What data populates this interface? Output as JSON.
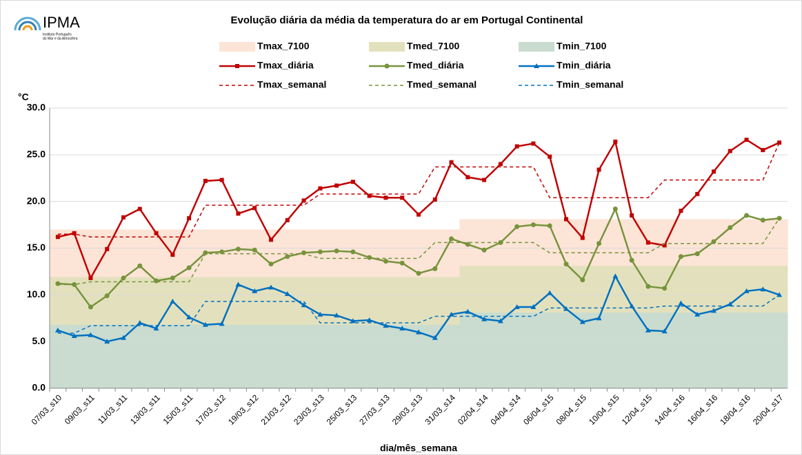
{
  "logo": {
    "name": "IPMA",
    "subtitle": [
      "Instituto Português",
      "do Mar e da Atmosfera"
    ]
  },
  "chart_data": {
    "type": "line",
    "title": "Evolução diária da média da temperatura do ar em Portugal Continental",
    "y_unit": "°C",
    "x_label": "dia/mês_semana",
    "categories": [
      "07/03_s10",
      null,
      "09/03_s11",
      null,
      "11/03_s11",
      null,
      "13/03_s11",
      null,
      "15/03_s11",
      null,
      "17/03_s12",
      null,
      "19/03_s12",
      null,
      "21/03_s12",
      null,
      "23/03_s13",
      null,
      "25/03_s13",
      null,
      "27/03_s13",
      null,
      "29/03_s13",
      null,
      "31/03_s14",
      null,
      "02/04_s14",
      null,
      "04/04_s14",
      null,
      "06/04_s15",
      null,
      "08/04_s15",
      null,
      "10/04_s15",
      null,
      "12/04_s15",
      null,
      "14/04_s16",
      null,
      "16/04_s16",
      null,
      "18/04_s16",
      null,
      "20/04_s17"
    ],
    "ylim": [
      0,
      30
    ],
    "yticks": [
      {
        "value": 0,
        "label": "0.0"
      },
      {
        "value": 5,
        "label": "5.0"
      },
      {
        "value": 10,
        "label": "10.0"
      },
      {
        "value": 15,
        "label": "15.0"
      },
      {
        "value": 20,
        "label": "20.0"
      },
      {
        "value": 25,
        "label": "25.0"
      },
      {
        "value": 30,
        "label": "30.0"
      }
    ],
    "grid": true,
    "series": [
      {
        "name": "Tmax_7100",
        "style": "area",
        "color": "#fce4d6",
        "values": [
          17.0,
          17.0,
          17.0,
          17.0,
          17.0,
          17.0,
          17.0,
          17.0,
          17.0,
          17.0,
          17.0,
          17.0,
          17.0,
          17.0,
          17.0,
          17.0,
          17.0,
          17.0,
          17.0,
          17.0,
          17.0,
          17.0,
          17.0,
          17.0,
          17.0,
          18.1,
          18.1,
          18.1,
          18.1,
          18.1,
          18.1,
          18.1,
          18.1,
          18.1,
          18.1,
          18.1,
          18.1,
          18.1,
          18.1,
          18.1,
          18.1,
          18.1,
          18.1,
          18.1,
          18.1
        ]
      },
      {
        "name": "Tmed_7100",
        "style": "area",
        "color": "#e3e1bd",
        "values": [
          11.9,
          11.9,
          11.9,
          11.9,
          11.9,
          11.9,
          11.9,
          11.9,
          11.9,
          11.9,
          11.9,
          11.9,
          11.9,
          11.9,
          11.9,
          11.9,
          11.9,
          11.9,
          11.9,
          11.9,
          11.9,
          11.9,
          11.9,
          11.9,
          11.9,
          13.1,
          13.1,
          13.1,
          13.1,
          13.1,
          13.1,
          13.1,
          13.1,
          13.1,
          13.1,
          13.1,
          13.1,
          13.1,
          13.1,
          13.1,
          13.1,
          13.1,
          13.1,
          13.1,
          13.1
        ]
      },
      {
        "name": "Tmin_7100",
        "style": "area",
        "color": "#c9dccf",
        "values": [
          6.8,
          6.8,
          6.8,
          6.8,
          6.8,
          6.8,
          6.8,
          6.8,
          6.8,
          6.8,
          6.8,
          6.8,
          6.8,
          6.8,
          6.8,
          6.8,
          6.8,
          6.8,
          6.8,
          6.8,
          6.8,
          6.8,
          6.8,
          6.8,
          6.8,
          8.1,
          8.1,
          8.1,
          8.1,
          8.1,
          8.1,
          8.1,
          8.1,
          8.1,
          8.1,
          8.1,
          8.1,
          8.1,
          8.1,
          8.1,
          8.1,
          8.1,
          8.1,
          8.1,
          8.1
        ]
      },
      {
        "name": "Tmax_diária",
        "style": "line",
        "marker": "square",
        "color": "#c00000",
        "values": [
          16.2,
          16.6,
          11.8,
          14.9,
          18.3,
          19.2,
          16.6,
          14.3,
          18.2,
          22.2,
          22.3,
          18.7,
          19.3,
          15.9,
          18.0,
          20.1,
          21.4,
          21.7,
          22.1,
          20.6,
          20.4,
          20.4,
          18.6,
          20.2,
          24.2,
          22.6,
          22.3,
          24.0,
          25.9,
          26.2,
          24.8,
          18.1,
          16.1,
          23.4,
          26.4,
          18.5,
          15.6,
          15.3,
          19.0,
          20.8,
          23.2,
          25.4,
          26.6,
          25.5,
          26.3
        ]
      },
      {
        "name": "Tmed_diária",
        "style": "line",
        "marker": "circle",
        "color": "#77933c",
        "values": [
          11.2,
          11.1,
          8.7,
          9.9,
          11.8,
          13.1,
          11.5,
          11.8,
          12.9,
          14.5,
          14.6,
          14.9,
          14.8,
          13.3,
          14.1,
          14.5,
          14.6,
          14.7,
          14.6,
          14.0,
          13.6,
          13.4,
          12.3,
          12.8,
          16.0,
          15.4,
          14.8,
          15.6,
          17.3,
          17.5,
          17.4,
          13.3,
          11.6,
          15.5,
          19.2,
          13.7,
          10.9,
          10.7,
          14.1,
          14.4,
          15.7,
          17.2,
          18.5,
          18.0,
          18.2
        ]
      },
      {
        "name": "Tmin_diária",
        "style": "line",
        "marker": "triangle",
        "color": "#0070c0",
        "values": [
          6.2,
          5.6,
          5.7,
          5.0,
          5.4,
          7.0,
          6.4,
          9.3,
          7.6,
          6.8,
          6.9,
          11.1,
          10.4,
          10.8,
          10.1,
          8.9,
          7.9,
          7.8,
          7.2,
          7.3,
          6.7,
          6.4,
          6.0,
          5.4,
          7.9,
          8.2,
          7.4,
          7.2,
          8.7,
          8.7,
          10.2,
          8.5,
          7.1,
          7.5,
          12.0,
          8.8,
          6.2,
          6.1,
          9.1,
          7.9,
          8.3,
          9.0,
          10.4,
          10.6,
          10.0
        ]
      },
      {
        "name": "Tmax_semanal",
        "style": "dashed",
        "color": "#c00000",
        "values": [
          16.5,
          16.5,
          16.2,
          16.2,
          16.2,
          16.2,
          16.2,
          16.2,
          16.2,
          19.6,
          19.6,
          19.6,
          19.6,
          19.6,
          19.6,
          19.6,
          20.8,
          20.8,
          20.8,
          20.8,
          20.8,
          20.8,
          20.8,
          23.7,
          23.7,
          23.7,
          23.7,
          23.7,
          23.7,
          23.7,
          20.4,
          20.4,
          20.4,
          20.4,
          20.4,
          20.4,
          20.4,
          22.3,
          22.3,
          22.3,
          22.3,
          22.3,
          22.3,
          22.3,
          26.3
        ]
      },
      {
        "name": "Tmed_semanal",
        "style": "dashed",
        "color": "#77933c",
        "values": [
          11.1,
          11.1,
          11.4,
          11.4,
          11.4,
          11.4,
          11.4,
          11.4,
          11.4,
          14.4,
          14.4,
          14.4,
          14.4,
          14.4,
          14.4,
          14.4,
          13.9,
          13.9,
          13.9,
          13.9,
          13.9,
          13.9,
          13.9,
          15.6,
          15.6,
          15.6,
          15.6,
          15.6,
          15.6,
          15.6,
          14.5,
          14.5,
          14.5,
          14.5,
          14.5,
          14.5,
          14.5,
          15.5,
          15.5,
          15.5,
          15.5,
          15.5,
          15.5,
          15.5,
          18.2
        ]
      },
      {
        "name": "Tmin_semanal",
        "style": "dashed",
        "color": "#0070c0",
        "values": [
          5.9,
          5.9,
          6.7,
          6.7,
          6.7,
          6.7,
          6.7,
          6.7,
          6.7,
          9.3,
          9.3,
          9.3,
          9.3,
          9.3,
          9.3,
          9.3,
          7.0,
          7.0,
          7.0,
          7.0,
          7.0,
          7.0,
          7.0,
          7.7,
          7.7,
          7.7,
          7.7,
          7.7,
          7.7,
          7.7,
          8.6,
          8.6,
          8.6,
          8.6,
          8.6,
          8.6,
          8.6,
          8.8,
          8.8,
          8.8,
          8.8,
          8.8,
          8.8,
          8.8,
          10.0
        ]
      }
    ]
  }
}
